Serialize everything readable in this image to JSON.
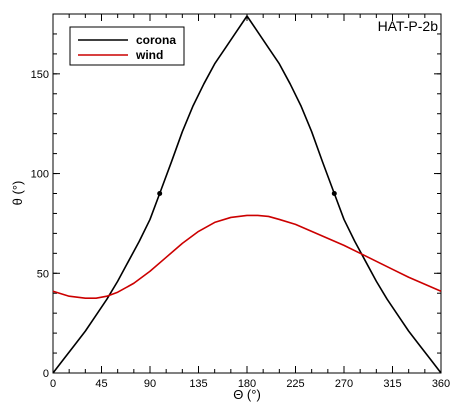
{
  "chart_data": {
    "type": "line",
    "title": "",
    "annotation": "HAT-P-2b",
    "xlabel": "Θ (°)",
    "ylabel": "θ (°)",
    "xlim": [
      0,
      360
    ],
    "ylim": [
      0,
      180
    ],
    "xticks": [
      0,
      45,
      90,
      135,
      180,
      225,
      270,
      315,
      360
    ],
    "yticks": [
      0,
      50,
      100,
      150
    ],
    "grid": false,
    "legend_position": "top-left",
    "series": [
      {
        "name": "corona",
        "color": "#000000",
        "x": [
          0,
          10,
          20,
          30,
          40,
          50,
          60,
          70,
          80,
          90,
          99,
          110,
          120,
          130,
          140,
          150,
          160,
          170,
          180,
          190,
          200,
          210,
          220,
          230,
          240,
          250,
          261,
          270,
          280,
          290,
          300,
          310,
          320,
          330,
          340,
          350,
          360
        ],
        "y": [
          0,
          7,
          14,
          21,
          29,
          37,
          46,
          56,
          66,
          77,
          90,
          106,
          121,
          134,
          145,
          155,
          163,
          171,
          179,
          171,
          163,
          155,
          145,
          134,
          121,
          106,
          90,
          77,
          66,
          56,
          46,
          37,
          29,
          21,
          14,
          7,
          0
        ]
      },
      {
        "name": "wind",
        "color": "#cc0000",
        "x": [
          0,
          15,
          30,
          40,
          50,
          60,
          75,
          90,
          105,
          120,
          135,
          150,
          165,
          180,
          190,
          200,
          210,
          225,
          240,
          255,
          270,
          285,
          300,
          315,
          330,
          345,
          360
        ],
        "y": [
          41,
          38.5,
          37.5,
          37.5,
          38.5,
          40.5,
          45,
          51,
          58,
          65,
          71,
          75.5,
          78,
          79,
          79,
          78.5,
          77,
          74.5,
          71,
          67.5,
          64,
          60,
          56,
          52,
          48,
          44.5,
          41
        ]
      }
    ],
    "markers": [
      {
        "x": 99,
        "y": 90
      },
      {
        "x": 261,
        "y": 90
      }
    ]
  }
}
